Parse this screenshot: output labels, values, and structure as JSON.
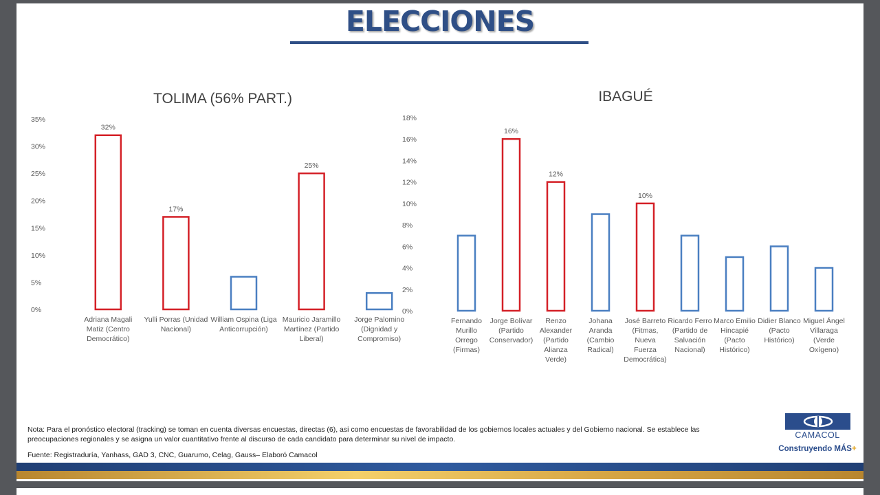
{
  "page": {
    "title": "ELECCIONES",
    "note": "Nota: Para el pronóstico electoral (tracking) se toman en cuenta diversas encuestas, directas (6), asi como encuestas de favorabilidad de los gobiernos locales actuales y del Gobierno nacional. Se establece las preocupaciones regionales y se asigna un valor cuantitativo frente al discurso de cada candidato para determinar su nivel de impacto.",
    "source": "Fuente:  Registraduría, Yanhass, GAD 3, CNC, Guarumo, Celag, Gauss– Elaboró Camacol",
    "logo_name": "CAMACOL",
    "logo_tagline": "Construyendo MÁS",
    "logo_plus": "+"
  },
  "colors": {
    "title": "#2f4f86",
    "highlight_bar": "#d42027",
    "normal_bar": "#4a7fc1",
    "brand": "#2b4d8c"
  },
  "chart_data": [
    {
      "type": "bar",
      "title": "TOLIMA (56% PART.)",
      "categories": [
        "Adriana Magali Matiz (Centro Democrático)",
        "Yulli Porras (Unidad Nacional)",
        "William Ospina (Liga Anticorrupción)",
        "Mauricio Jaramillo Martínez (Partido Liberal)",
        "Jorge Palomino (Dignidad y Compromiso)"
      ],
      "category_lines": [
        [
          "Adriana Magali",
          "Matiz (Centro",
          "Democrático)"
        ],
        [
          "Yulli Porras (Unidad",
          "Nacional)"
        ],
        [
          "William Ospina (Liga",
          "Anticorrupción)"
        ],
        [
          "Mauricio Jaramillo",
          "Martínez (Partido",
          "Liberal)"
        ],
        [
          "Jorge Palomino",
          "(Dignidad y",
          "Compromiso)"
        ]
      ],
      "values": [
        32,
        17,
        6,
        25,
        3
      ],
      "highlighted": [
        true,
        true,
        false,
        true,
        false
      ],
      "data_labels": [
        "32%",
        "17%",
        "",
        "25%",
        ""
      ],
      "yticks": [
        "0%",
        "5%",
        "10%",
        "15%",
        "20%",
        "25%",
        "30%",
        "35%"
      ],
      "ylim": [
        0,
        35
      ],
      "grid": false,
      "legend": "none"
    },
    {
      "type": "bar",
      "title": "IBAGUÉ",
      "categories": [
        "Fernando Murillo Orrego (Firmas)",
        "Jorge Bolívar (Partido Conservador)",
        "Renzo Alexander (Partido Alianza Verde)",
        "Johana Aranda (Cambio Radical)",
        "José Barreto (Fitmas, Nueva Fuerza Democrática)",
        "Ricardo Ferro (Partido de Salvación Nacional)",
        "Marco Emilio Hincapié (Pacto Histórico)",
        "Didier Blanco (Pacto Histórico)",
        "Miguel Ángel Villaraga (Verde Oxígeno)"
      ],
      "category_lines": [
        [
          "Fernando",
          "Murillo",
          "Orrego",
          "(Firmas)"
        ],
        [
          "Jorge Bolívar",
          "(Partido",
          "Conservador)"
        ],
        [
          "Renzo",
          "Alexander",
          "(Partido",
          "Alianza",
          "Verde)"
        ],
        [
          "Johana",
          "Aranda",
          "(Cambio",
          "Radical)"
        ],
        [
          "José Barreto",
          "(Fitmas,",
          "Nueva Fuerza",
          "Democrática)"
        ],
        [
          "Ricardo Ferro",
          "(Partido de",
          "Salvación",
          "Nacional)"
        ],
        [
          "Marco Emilio",
          "Hincapié",
          "(Pacto",
          "Histórico)"
        ],
        [
          "Didier Blanco",
          "(Pacto",
          "Histórico)"
        ],
        [
          "Miguel Ángel",
          "Villaraga",
          "(Verde",
          "Oxígeno)"
        ]
      ],
      "values": [
        7,
        16,
        12,
        9,
        10,
        7,
        5,
        6,
        4
      ],
      "highlighted": [
        false,
        true,
        true,
        false,
        true,
        false,
        false,
        false,
        false
      ],
      "data_labels": [
        "",
        "16%",
        "12%",
        "",
        "10%",
        "",
        "",
        "",
        ""
      ],
      "yticks": [
        "0%",
        "2%",
        "4%",
        "6%",
        "8%",
        "10%",
        "12%",
        "14%",
        "16%",
        "18%"
      ],
      "ylim": [
        0,
        18
      ],
      "grid": false,
      "legend": "none"
    }
  ]
}
